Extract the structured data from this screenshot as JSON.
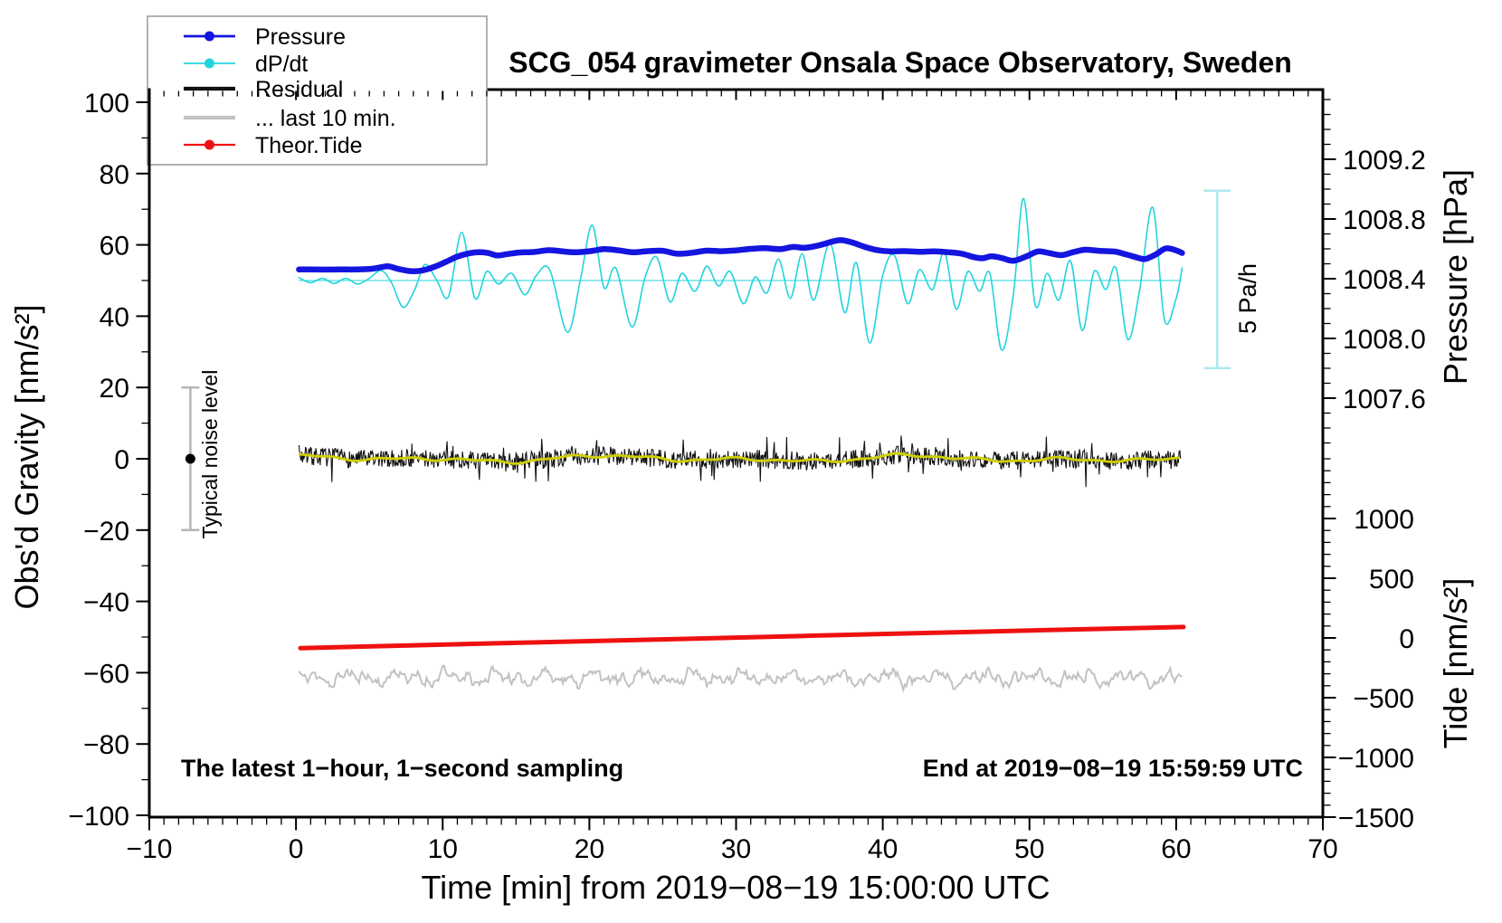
{
  "title": "SCG_054 gravimeter Onsala Space Observatory, Sweden",
  "notes": {
    "sampling": "The latest 1−hour, 1−second sampling",
    "end_time": "End at 2019−08−19 15:59:59 UTC"
  },
  "annotations": {
    "noise_bar_label": "Typical noise level",
    "pressure_rate_label": "5 Pa/h"
  },
  "legend": {
    "items": [
      {
        "label": "Pressure",
        "color": "#1515e0",
        "width": 2.7,
        "dot": true
      },
      {
        "label": "dP/dt",
        "color": "#22d4dc",
        "width": 1.7,
        "dot": true
      },
      {
        "label": "Residual",
        "color": "#111111",
        "width": 4.2,
        "dot": false
      },
      {
        "label": "... last 10 min.",
        "color": "#c2c2c2",
        "width": 4.2,
        "dot": false
      },
      {
        "label": "Theor.Tide",
        "color": "#ee1111",
        "width": 2.2,
        "dot": true
      }
    ]
  },
  "chart_data": {
    "type": "line",
    "title": "SCG_054 gravimeter Onsala Space Observatory, Sweden",
    "axes": {
      "x": {
        "title": "Time [min] from 2019−08−19 15:00:00 UTC",
        "min": -10,
        "max": 70,
        "major_step": 10,
        "minor_step": 1
      },
      "gravity": {
        "title": "Obs'd Gravity [nm/s²]",
        "min": -100,
        "max": 100,
        "major_step": 20,
        "minor_step": 10
      },
      "pressure": {
        "title": "Pressure [hPa]",
        "majors": [
          1009.2,
          1008.8,
          1008.4,
          1008.0,
          1007.6
        ],
        "minor_step": 0.1,
        "minor_min": 1007.3,
        "minor_max": 1009.6
      },
      "tide": {
        "title": "Tide [nm/s²]",
        "majors": [
          1000,
          500,
          0,
          -500,
          -1000,
          -1500
        ],
        "minor_step": 100,
        "minor_min": -1500,
        "minor_max": 1500
      }
    },
    "series": [
      {
        "name": "pressure",
        "axis": "pressure",
        "color": "#1515e0",
        "width": 6.5,
        "smooth": true,
        "points": [
          [
            0.2,
            1008.462
          ],
          [
            1,
            1008.462
          ],
          [
            2,
            1008.461
          ],
          [
            3,
            1008.462
          ],
          [
            4,
            1008.462
          ],
          [
            5,
            1008.465
          ],
          [
            5.8,
            1008.477
          ],
          [
            6.3,
            1008.483
          ],
          [
            7,
            1008.465
          ],
          [
            7.8,
            1008.451
          ],
          [
            8.6,
            1008.455
          ],
          [
            9.4,
            1008.478
          ],
          [
            10.2,
            1008.512
          ],
          [
            11,
            1008.548
          ],
          [
            11.8,
            1008.57
          ],
          [
            12.5,
            1008.578
          ],
          [
            13.1,
            1008.572
          ],
          [
            13.7,
            1008.556
          ],
          [
            14.4,
            1008.565
          ],
          [
            15.2,
            1008.575
          ],
          [
            16.2,
            1008.579
          ],
          [
            17.2,
            1008.591
          ],
          [
            18,
            1008.585
          ],
          [
            19,
            1008.577
          ],
          [
            20,
            1008.584
          ],
          [
            21,
            1008.598
          ],
          [
            22,
            1008.59
          ],
          [
            23,
            1008.577
          ],
          [
            24,
            1008.585
          ],
          [
            25,
            1008.587
          ],
          [
            26,
            1008.567
          ],
          [
            27,
            1008.574
          ],
          [
            28,
            1008.588
          ],
          [
            29,
            1008.584
          ],
          [
            30,
            1008.59
          ],
          [
            31,
            1008.6
          ],
          [
            32,
            1008.605
          ],
          [
            33,
            1008.598
          ],
          [
            33.9,
            1008.613
          ],
          [
            34.7,
            1008.607
          ],
          [
            35.7,
            1008.625
          ],
          [
            36.6,
            1008.65
          ],
          [
            37.2,
            1008.658
          ],
          [
            38,
            1008.64
          ],
          [
            38.8,
            1008.612
          ],
          [
            39.6,
            1008.592
          ],
          [
            40.5,
            1008.583
          ],
          [
            41.5,
            1008.585
          ],
          [
            42.5,
            1008.58
          ],
          [
            43.5,
            1008.583
          ],
          [
            44.5,
            1008.577
          ],
          [
            45.4,
            1008.567
          ],
          [
            46.2,
            1008.545
          ],
          [
            46.8,
            1008.537
          ],
          [
            47.4,
            1008.55
          ],
          [
            48.1,
            1008.539
          ],
          [
            48.9,
            1008.52
          ],
          [
            49.8,
            1008.55
          ],
          [
            50.6,
            1008.583
          ],
          [
            51.4,
            1008.57
          ],
          [
            52.2,
            1008.558
          ],
          [
            53,
            1008.578
          ],
          [
            53.8,
            1008.594
          ],
          [
            54.8,
            1008.586
          ],
          [
            55.8,
            1008.582
          ],
          [
            56.6,
            1008.562
          ],
          [
            57.4,
            1008.54
          ],
          [
            57.9,
            1008.532
          ],
          [
            58.6,
            1008.562
          ],
          [
            59.3,
            1008.603
          ],
          [
            60,
            1008.59
          ],
          [
            60.4,
            1008.572
          ]
        ]
      },
      {
        "name": "dpdt",
        "axis": "gravity",
        "color": "#22d4dc",
        "width": 1.6,
        "smooth": true,
        "baseline": 50,
        "points": [
          [
            0.2,
            50.8
          ],
          [
            1,
            49.4
          ],
          [
            1.8,
            50.6
          ],
          [
            2.6,
            49.2
          ],
          [
            3.4,
            50.6
          ],
          [
            4.2,
            49
          ],
          [
            5,
            50.6
          ],
          [
            5.8,
            52.8
          ],
          [
            6.5,
            49.5
          ],
          [
            7.3,
            42.5
          ],
          [
            8.1,
            47.5
          ],
          [
            8.8,
            54.5
          ],
          [
            9.6,
            50
          ],
          [
            10.4,
            45.5
          ],
          [
            11.3,
            63.5
          ],
          [
            12.2,
            45
          ],
          [
            13,
            52.5
          ],
          [
            13.8,
            49
          ],
          [
            14.7,
            52
          ],
          [
            15.6,
            46
          ],
          [
            16.4,
            51.5
          ],
          [
            17.3,
            53
          ],
          [
            18.5,
            35.5
          ],
          [
            19.4,
            50.5
          ],
          [
            20.2,
            65.5
          ],
          [
            21,
            48
          ],
          [
            21.8,
            53.5
          ],
          [
            22.9,
            37
          ],
          [
            23.8,
            51
          ],
          [
            24.6,
            56.5
          ],
          [
            25.5,
            44
          ],
          [
            26.3,
            52
          ],
          [
            27.2,
            47
          ],
          [
            28,
            54
          ],
          [
            28.8,
            48.5
          ],
          [
            29.6,
            52.5
          ],
          [
            30.5,
            43.5
          ],
          [
            31.3,
            51
          ],
          [
            32.1,
            46.5
          ],
          [
            32.9,
            56
          ],
          [
            33.7,
            45
          ],
          [
            34.5,
            57.5
          ],
          [
            35.3,
            44.5
          ],
          [
            36.4,
            60.5
          ],
          [
            37.4,
            41
          ],
          [
            38.2,
            55
          ],
          [
            39.1,
            32.5
          ],
          [
            40,
            51.5
          ],
          [
            40.8,
            57
          ],
          [
            41.7,
            43.5
          ],
          [
            42.5,
            53
          ],
          [
            43.4,
            47.5
          ],
          [
            44.2,
            58
          ],
          [
            45,
            42
          ],
          [
            45.8,
            52.5
          ],
          [
            46.6,
            47
          ],
          [
            47.3,
            52
          ],
          [
            48.1,
            30.5
          ],
          [
            48.9,
            46
          ],
          [
            49.6,
            73
          ],
          [
            50.4,
            43
          ],
          [
            51.2,
            52
          ],
          [
            52,
            44.5
          ],
          [
            52.8,
            55.5
          ],
          [
            53.6,
            36
          ],
          [
            54.4,
            52.5
          ],
          [
            55.2,
            47.5
          ],
          [
            55.9,
            53.5
          ],
          [
            56.7,
            33.5
          ],
          [
            57.5,
            47
          ],
          [
            58.4,
            70.5
          ],
          [
            59.2,
            39
          ],
          [
            60,
            45
          ],
          [
            60.4,
            53.5
          ]
        ]
      },
      {
        "name": "theoretical-tide",
        "axis": "tide",
        "color": "#ee1111",
        "width": 5,
        "smooth": true,
        "points": [
          [
            0.3,
            -85
          ],
          [
            15,
            -41
          ],
          [
            30,
            3
          ],
          [
            45,
            48
          ],
          [
            60.5,
            92
          ]
        ]
      },
      {
        "name": "residual",
        "axis": "gravity",
        "color": "#111111",
        "width": 1.1,
        "generator": {
          "kind": "noise",
          "seed": 7,
          "center": 0,
          "amp": 2.6,
          "spike_p": 0.07,
          "spike_amp": 3.2,
          "t0": 0.2,
          "t1": 60.3,
          "dt": 0.05
        }
      },
      {
        "name": "residual-smooth",
        "axis": "gravity",
        "color": "#cfcf00",
        "width": 2.8,
        "generator": {
          "kind": "sines",
          "center": 0,
          "components": [
            [
              0.55,
              0.31,
              1.0
            ],
            [
              0.45,
              0.59,
              2.1
            ],
            [
              0.35,
              1.11,
              0.4
            ],
            [
              0.25,
              2.3,
              1.7
            ]
          ],
          "jitter": 0,
          "seed": 3,
          "t0": 0.2,
          "t1": 60.3,
          "dt": 0.2
        }
      },
      {
        "name": "residual-last-10-min",
        "axis": "gravity",
        "color": "#c2c2c2",
        "width": 2,
        "generator": {
          "kind": "sines",
          "center": -61.4,
          "components": [
            [
              1.1,
              1.9,
              0.5
            ],
            [
              0.9,
              3.7,
              2.0
            ],
            [
              0.7,
              7.1,
              0.0
            ],
            [
              0.5,
              11.3,
              1.0
            ]
          ],
          "jitter": 0.9,
          "seed": 11,
          "t0": 0.2,
          "t1": 60.4,
          "dt": 0.1
        }
      }
    ],
    "error_bars": [
      {
        "name": "typical-noise-level",
        "axis": "gravity",
        "t": -7.2,
        "from": 20,
        "to": -20,
        "center_dot": 0,
        "color": "#b6b6b6",
        "dot_color": "#000000",
        "cap": 10
      },
      {
        "name": "pressure-rate-scale",
        "axis": "gravity",
        "t": 62.8,
        "from": 75.2,
        "to": 25.4,
        "color": "#aee8ec",
        "cap": 15
      }
    ]
  }
}
